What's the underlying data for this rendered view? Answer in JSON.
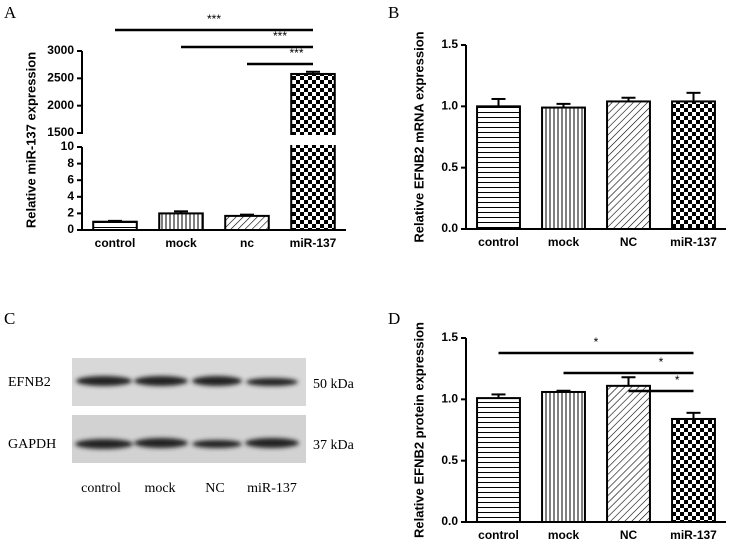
{
  "chart_data": [
    {
      "type": "bar",
      "panel": "A",
      "ylabel": "Relative miR-137 expression",
      "categories": [
        "control",
        "mock",
        "nc",
        "miR-137"
      ],
      "values": [
        1.0,
        2.0,
        1.7,
        2580
      ],
      "errors": [
        0.1,
        0.25,
        0.15,
        40
      ],
      "patterns": [
        "horizontal",
        "vertical",
        "diagonal",
        "checker"
      ],
      "ylim": [
        0,
        3000
      ],
      "ylim_segments": [
        [
          0,
          10
        ],
        [
          1500,
          3000
        ]
      ],
      "yticks": [
        0,
        2,
        4,
        6,
        8,
        10,
        1500,
        2000,
        2500,
        3000
      ],
      "comparisons": [
        {
          "from": "control",
          "to": "miR-137",
          "label": "***"
        },
        {
          "from": "mock",
          "to": "miR-137",
          "label": "***"
        },
        {
          "from": "nc",
          "to": "miR-137",
          "label": "***"
        }
      ]
    },
    {
      "type": "bar",
      "panel": "B",
      "ylabel": "Relative EFNB2 mRNA expression",
      "categories": [
        "control",
        "mock",
        "NC",
        "miR-137"
      ],
      "values": [
        1.0,
        0.99,
        1.04,
        1.04
      ],
      "errors": [
        0.06,
        0.03,
        0.03,
        0.07
      ],
      "patterns": [
        "horizontal",
        "vertical",
        "diagonal",
        "checker"
      ],
      "ylim": [
        0,
        1.5
      ],
      "yticks": [
        {
          "value": 0,
          "label": "0.0"
        },
        {
          "value": 0.5,
          "label": "0.5"
        },
        {
          "value": 1,
          "label": "1.0"
        },
        {
          "value": 1.5,
          "label": "1.5"
        }
      ],
      "comparisons": []
    },
    {
      "type": "bar",
      "panel": "D",
      "ylabel": "Relative EFNB2 protein expression",
      "categories": [
        "control",
        "mock",
        "NC",
        "miR-137"
      ],
      "values": [
        1.01,
        1.06,
        1.11,
        0.84
      ],
      "errors": [
        0.03,
        0.01,
        0.07,
        0.05
      ],
      "patterns": [
        "horizontal",
        "vertical",
        "diagonal",
        "checker"
      ],
      "ylim": [
        0,
        1.5
      ],
      "yticks": [
        {
          "value": 0,
          "label": "0.0"
        },
        {
          "value": 0.5,
          "label": "0.5"
        },
        {
          "value": 1,
          "label": "1.0"
        },
        {
          "value": 1.5,
          "label": "1.5"
        }
      ],
      "comparisons": [
        {
          "from": "control",
          "to": "miR-137",
          "label": "*"
        },
        {
          "from": "mock",
          "to": "miR-137",
          "label": "*"
        },
        {
          "from": "NC",
          "to": "miR-137",
          "label": "*"
        }
      ]
    }
  ],
  "blot": {
    "panel": "C",
    "proteins": [
      "EFNB2",
      "GAPDH"
    ],
    "sizes": [
      "50 kDa",
      "37 kDa"
    ],
    "lanes": [
      "control",
      "mock",
      "NC",
      "miR-137"
    ]
  }
}
